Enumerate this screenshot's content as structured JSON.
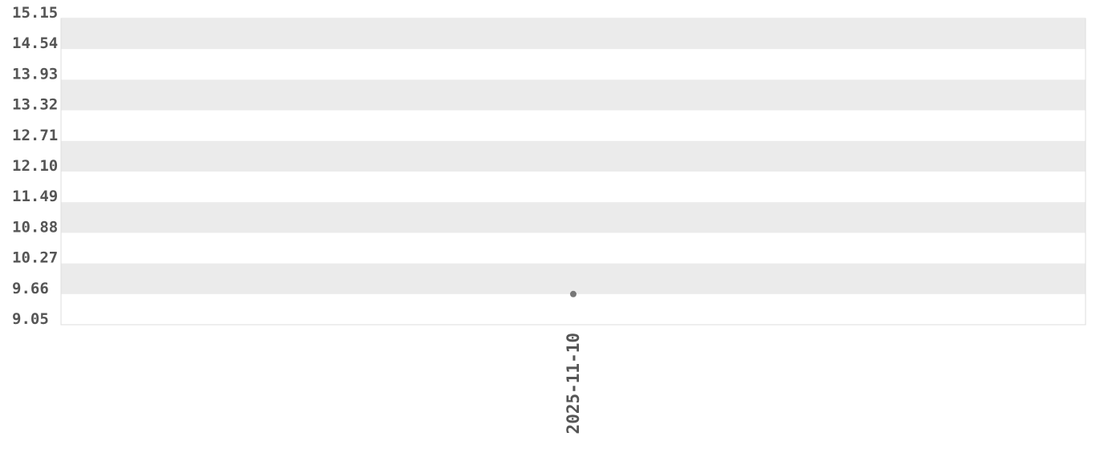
{
  "chart_data": {
    "type": "scatter",
    "title": "",
    "xlabel": "",
    "ylabel": "",
    "x_categories": [
      "2025-11-10"
    ],
    "points": [
      {
        "x": "2025-11-10",
        "y": 9.66
      }
    ],
    "yticks": [
      "9.05",
      "9.66",
      "10.27",
      "10.88",
      "11.49",
      "12.10",
      "12.71",
      "13.32",
      "13.93",
      "14.54",
      "15.15"
    ],
    "ylim": [
      9.05,
      15.15
    ],
    "grid": "alternating horizontal bands",
    "colors": {
      "band": "#ebebeb",
      "point": "#777777",
      "text": "#555555",
      "border": "#dddddd"
    }
  }
}
